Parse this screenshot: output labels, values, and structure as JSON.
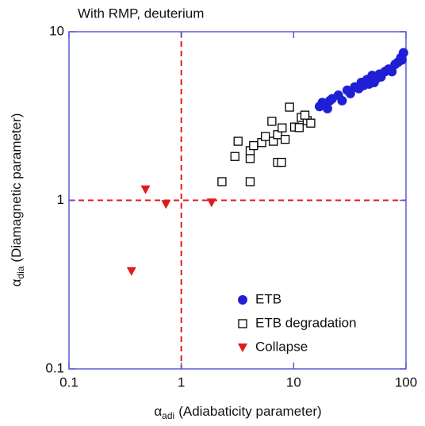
{
  "chart_data": {
    "type": "scatter",
    "title": "With RMP, deuterium",
    "xlabel": {
      "symbol": "α",
      "subscript": "adi",
      "text": "(Adiabaticity parameter)"
    },
    "ylabel": {
      "symbol": "α",
      "subscript": "dia",
      "text": "(Diamagnetic parameter)"
    },
    "xscale": "log",
    "yscale": "log",
    "xlim": [
      0.1,
      100
    ],
    "ylim": [
      0.1,
      10
    ],
    "xticks": [
      0.1,
      1,
      10,
      100
    ],
    "yticks": [
      0.1,
      1,
      10
    ],
    "frame_color": "#5b5bd6",
    "reference_lines": {
      "x": 1,
      "y": 1,
      "color": "#e31a1a"
    },
    "legend": "lower right",
    "series": [
      {
        "name": "ETB",
        "marker": "circle",
        "color": "#1f1fd6",
        "x": [
          17,
          18,
          20,
          21,
          22,
          25,
          27,
          30,
          32,
          35,
          38,
          40,
          42,
          45,
          47,
          48,
          50,
          52,
          55,
          58,
          60,
          65,
          70,
          75,
          80,
          85,
          90,
          92,
          95
        ],
        "values": [
          3.6,
          3.8,
          3.5,
          3.9,
          4.0,
          4.2,
          3.9,
          4.5,
          4.3,
          4.7,
          4.6,
          5.0,
          4.8,
          5.2,
          4.9,
          5.0,
          5.5,
          5.0,
          5.3,
          5.6,
          5.4,
          5.8,
          6.0,
          5.8,
          6.4,
          6.6,
          7.0,
          6.8,
          7.5
        ]
      },
      {
        "name": "ETB degradation",
        "marker": "square",
        "color": "#000000",
        "x": [
          2.3,
          3.0,
          3.2,
          4.1,
          4.1,
          4.1,
          4.4,
          5.2,
          5.6,
          6.4,
          6.6,
          7.2,
          7.9,
          8.4,
          7.2,
          7.8,
          9.2,
          10.2,
          11.2,
          11.7,
          13.2,
          14.2,
          12.6
        ],
        "values": [
          1.29,
          1.82,
          2.24,
          1.77,
          1.97,
          1.29,
          2.11,
          2.2,
          2.39,
          2.94,
          2.24,
          2.45,
          2.69,
          2.3,
          1.68,
          1.68,
          3.57,
          2.72,
          2.7,
          3.1,
          2.97,
          2.87,
          3.2
        ]
      },
      {
        "name": "Collapse",
        "marker": "triangle-down",
        "color": "#e31a1a",
        "x": [
          0.36,
          0.48,
          0.73,
          1.86
        ],
        "values": [
          0.38,
          1.16,
          0.95,
          0.97
        ]
      }
    ]
  }
}
